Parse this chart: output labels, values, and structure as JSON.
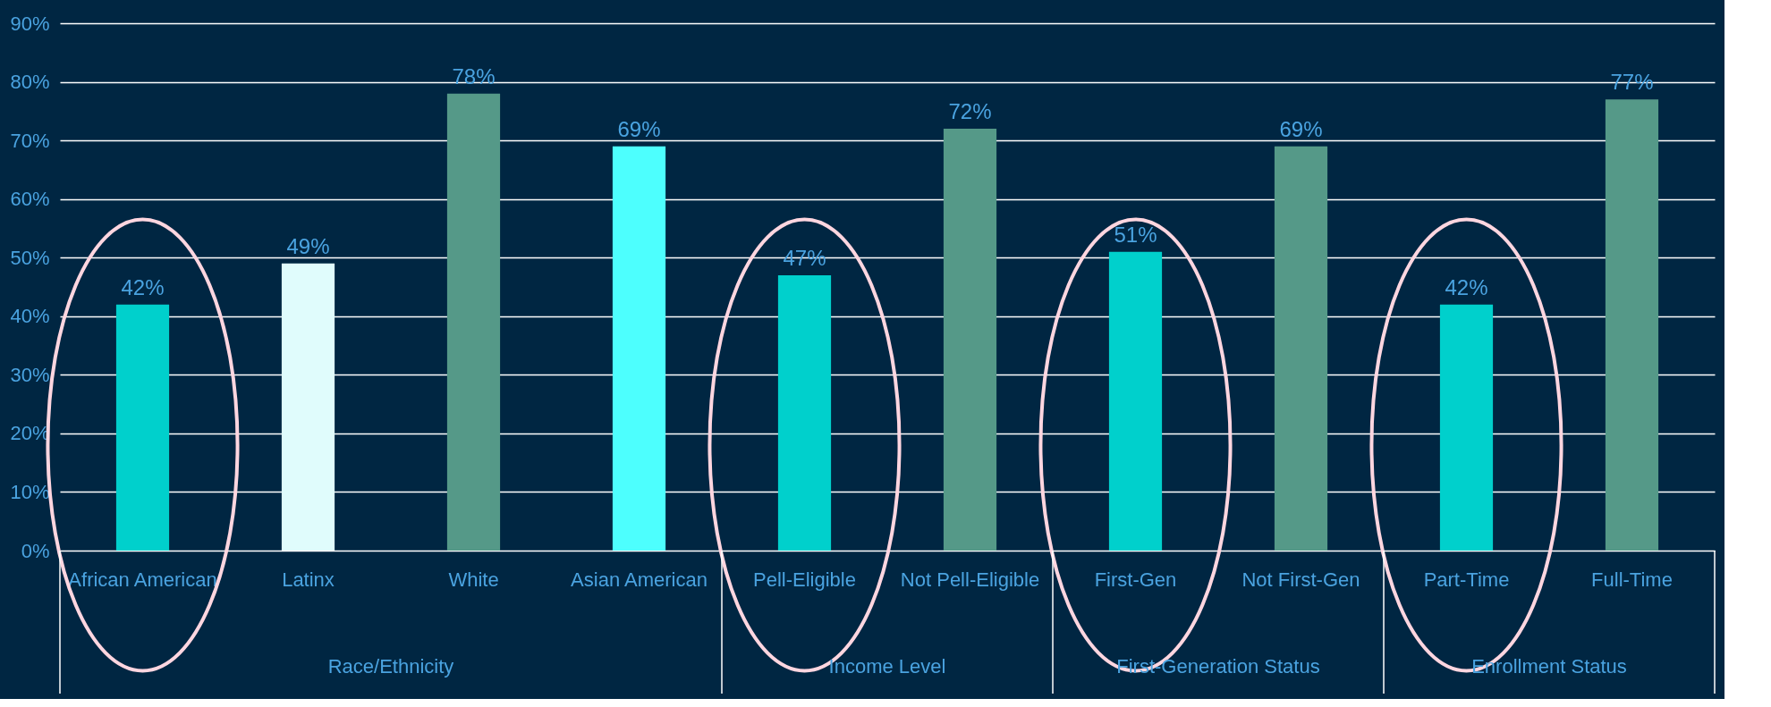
{
  "chart_data": {
    "type": "bar",
    "categories": [
      "African American",
      "Latinx",
      "White",
      "Asian American",
      "Pell-Eligible",
      "Not Pell-Eligible",
      "First-Gen",
      "Not First-Gen",
      "Part-Time",
      "Full-Time"
    ],
    "values": [
      42,
      49,
      78,
      69,
      47,
      72,
      51,
      69,
      42,
      77
    ],
    "value_labels": [
      "42%",
      "49%",
      "78%",
      "69%",
      "47%",
      "72%",
      "51%",
      "69%",
      "42%",
      "77%"
    ],
    "colors": [
      "#00d0cc",
      "#e0fcfc",
      "#559988",
      "#4dfffe",
      "#00d0cc",
      "#559988",
      "#00d0cc",
      "#559988",
      "#00d0cc",
      "#559988"
    ],
    "ylim": [
      0,
      90
    ],
    "yticks": [
      {
        "value": 0,
        "label": "0%"
      },
      {
        "value": 10,
        "label": "10%"
      },
      {
        "value": 20,
        "label": "20%"
      },
      {
        "value": 30,
        "label": "30%"
      },
      {
        "value": 40,
        "label": "40%"
      },
      {
        "value": 50,
        "label": "50%"
      },
      {
        "value": 60,
        "label": "60%"
      },
      {
        "value": 70,
        "label": "70%"
      },
      {
        "value": 80,
        "label": "80%"
      },
      {
        "value": 90,
        "label": "90%"
      }
    ],
    "grid": "y",
    "annotations": [
      "Race/Ethnicity",
      "Income Level",
      "First-Generation Status",
      "Enrollment Status"
    ]
  }
}
